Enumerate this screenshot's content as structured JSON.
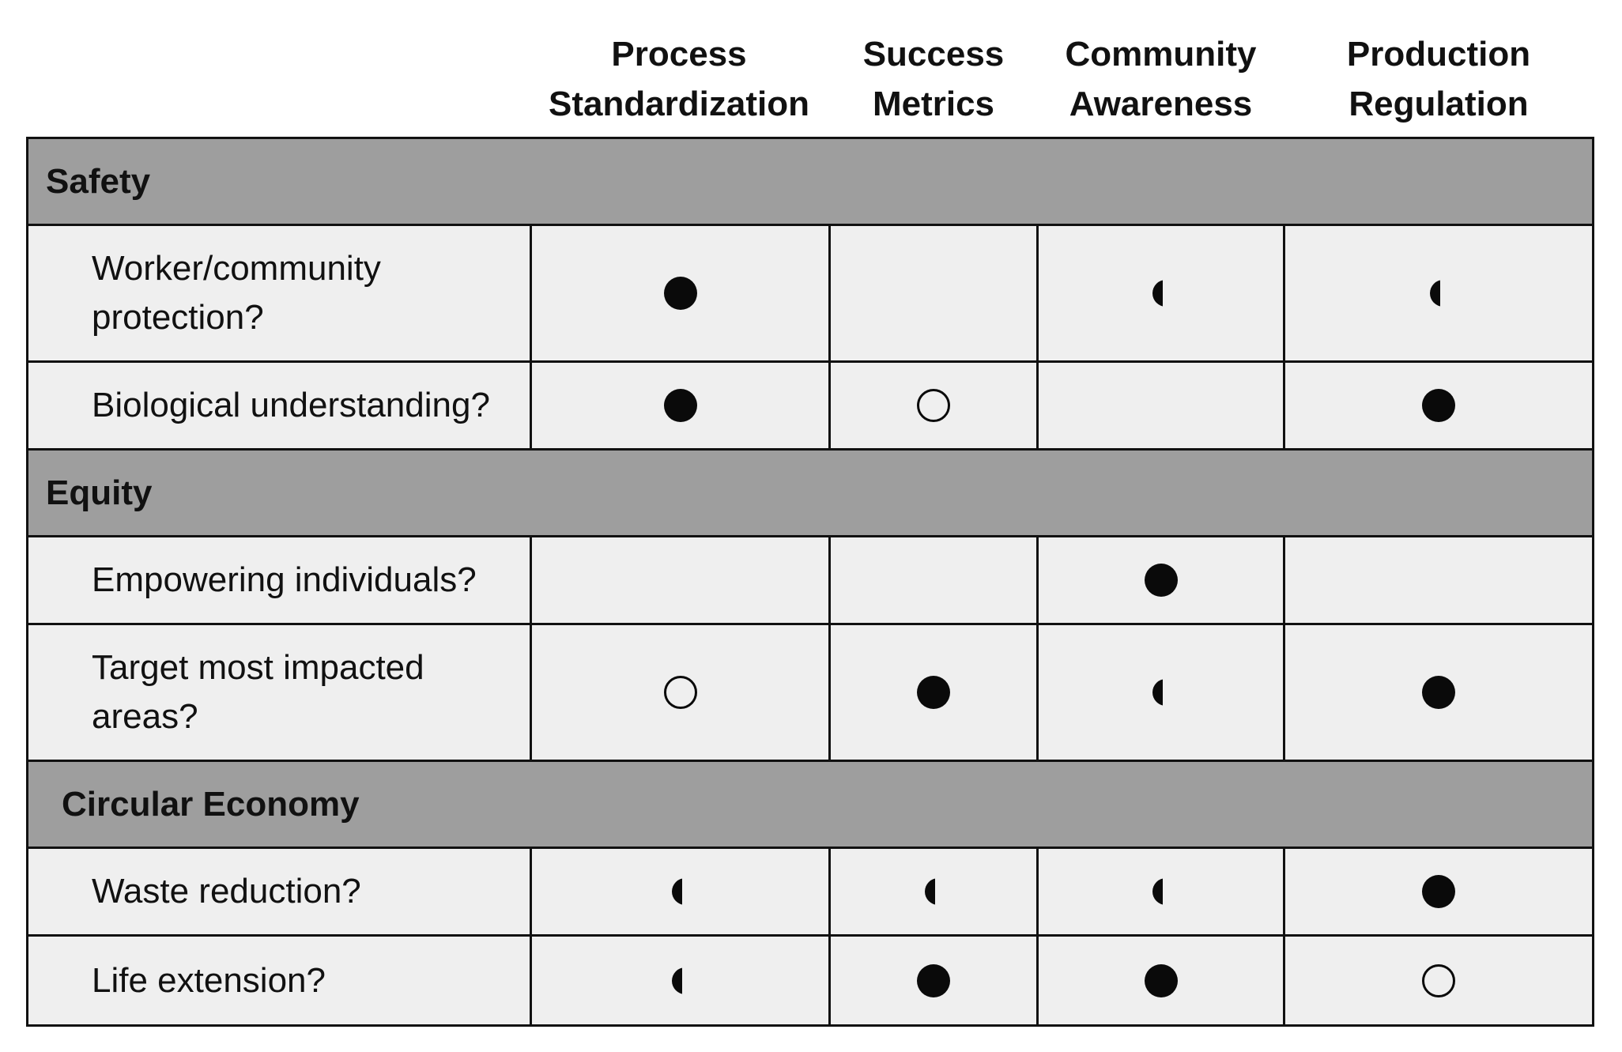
{
  "columns": [
    {
      "line1": "Process",
      "line2": "Standardization"
    },
    {
      "line1": "Success",
      "line2": "Metrics"
    },
    {
      "line1": "Community",
      "line2": "Awareness"
    },
    {
      "line1": "Production",
      "line2": "Regulation"
    }
  ],
  "sections": [
    {
      "title": "Safety",
      "rows": [
        {
          "label_lines": [
            "Worker/community",
            "protection?"
          ],
          "marks": [
            "full",
            "none",
            "half",
            "half"
          ]
        },
        {
          "label_lines": [
            "Biological understanding?"
          ],
          "marks": [
            "full",
            "empty",
            "none",
            "full"
          ]
        }
      ]
    },
    {
      "title": "Equity",
      "rows": [
        {
          "label_lines": [
            "Empowering individuals?"
          ],
          "marks": [
            "none",
            "none",
            "full",
            "none"
          ]
        },
        {
          "label_lines": [
            "Target most impacted",
            "areas?"
          ],
          "marks": [
            "empty",
            "full",
            "half",
            "full"
          ]
        }
      ]
    },
    {
      "title": "Circular Economy",
      "rows": [
        {
          "label_lines": [
            "Waste reduction?"
          ],
          "marks": [
            "half",
            "half",
            "half",
            "full"
          ]
        },
        {
          "label_lines": [
            "Life extension?"
          ],
          "marks": [
            "half",
            "full",
            "full",
            "empty"
          ]
        }
      ]
    }
  ],
  "legend": {
    "full": "full-circle-icon",
    "half": "half-circle-icon",
    "empty": "empty-circle-icon",
    "none": "blank"
  },
  "colors": {
    "section_background": "#9e9e9e",
    "cell_background": "#efefef",
    "line": "#111111",
    "mark": "#0a0a0a"
  }
}
